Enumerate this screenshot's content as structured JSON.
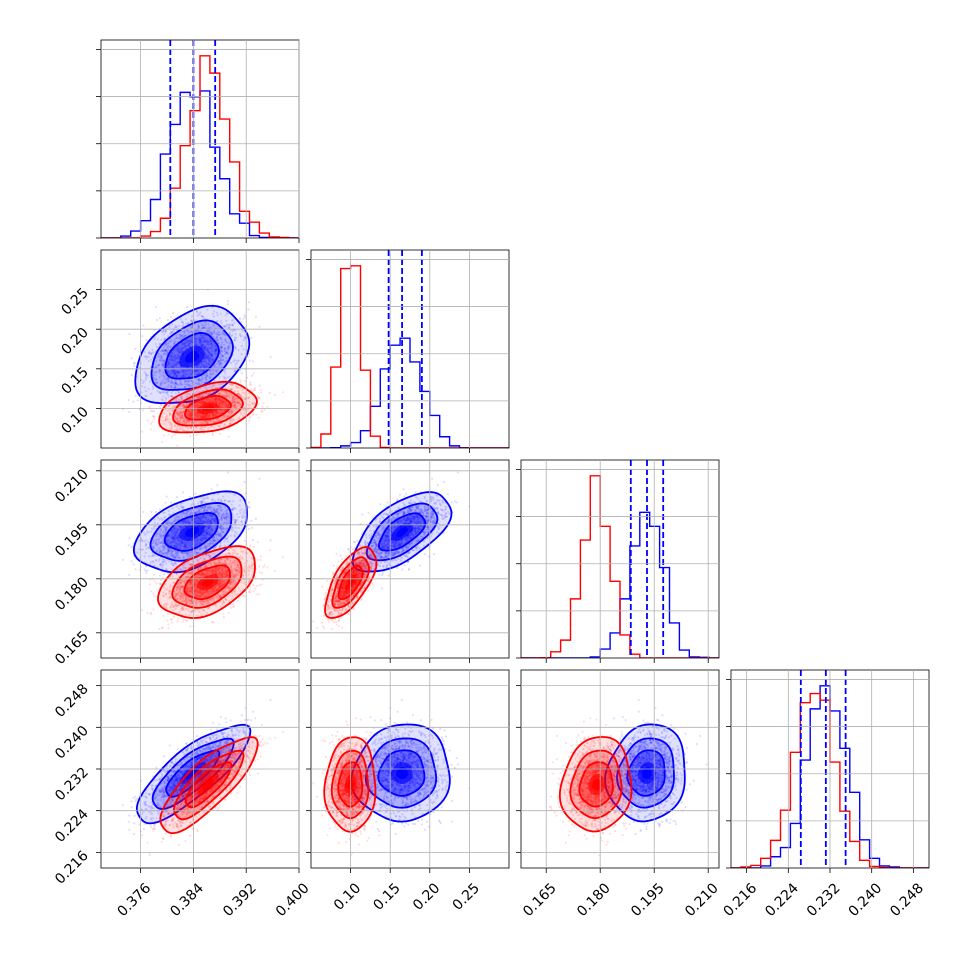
{
  "chart_data": {
    "type": "corner",
    "parameters": [
      "",
      "",
      "",
      ""
    ],
    "ranges": [
      [
        0.37,
        0.4
      ],
      [
        0.05,
        0.3
      ],
      [
        0.158,
        0.213
      ],
      [
        0.213,
        0.251
      ]
    ],
    "ticks": [
      [
        "0.376",
        "0.384",
        "0.392",
        "0.400"
      ],
      [
        "0.10",
        "0.15",
        "0.20",
        "0.25"
      ],
      [
        "0.165",
        "0.180",
        "0.195",
        "0.210"
      ],
      [
        "0.216",
        "0.224",
        "0.232",
        "0.240",
        "0.248"
      ]
    ],
    "series": [
      {
        "color": "#0000ff",
        "mean": [
          0.3838,
          0.165,
          0.193,
          0.2312
        ],
        "std": [
          0.0035,
          0.025,
          0.0045,
          0.0038
        ]
      },
      {
        "color": "#ff0000",
        "mean": [
          0.3862,
          0.1,
          0.179,
          0.229
        ],
        "std": [
          0.003,
          0.013,
          0.004,
          0.0037
        ]
      }
    ],
    "correlations": {
      "blue": {
        "1-0": 0.35,
        "2-0": 0.45,
        "2-1": 0.6,
        "3-0": 0.8,
        "3-1": 0.05,
        "3-2": 0.1
      },
      "red": {
        "1-0": 0.35,
        "2-0": 0.45,
        "2-1": 0.65,
        "3-0": 0.8,
        "3-1": 0.05,
        "3-2": 0.1
      }
    },
    "quantile_lines": {
      "color": "#0000ff",
      "values": [
        [
          0.3805,
          0.384,
          0.3873
        ],
        [
          0.148,
          0.165,
          0.19
        ],
        [
          0.1885,
          0.193,
          0.1975
        ],
        [
          0.2264,
          0.2312,
          0.235
        ]
      ]
    },
    "grid": true
  }
}
